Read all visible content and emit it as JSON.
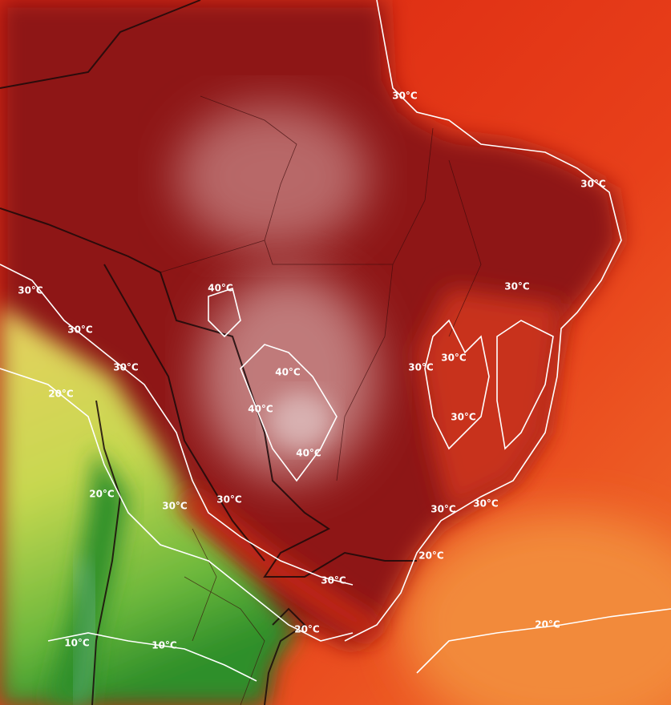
{
  "labels": [
    "30°C",
    "30°C",
    "30°C",
    "30°C",
    "40°C",
    "30°C",
    "30°C",
    "40°C",
    "30°C",
    "30°C",
    "20°C",
    "40°C",
    "30°C",
    "40°C",
    "20°C",
    "30°C",
    "30°C",
    "30°C",
    "30°C",
    "20°C",
    "30°C",
    "20°C",
    "20°C",
    "10°C",
    "10°C"
  ]
}
